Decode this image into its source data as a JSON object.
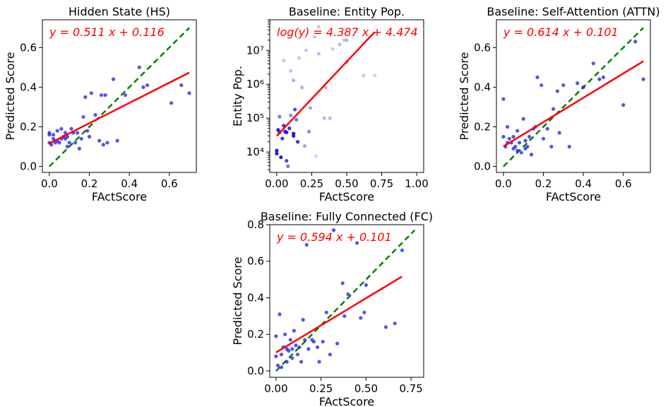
{
  "colors": {
    "points": "#1a1ae6",
    "fit_line": "#ff0000",
    "identity_line": "#008000",
    "equation_text": "#ff0000"
  },
  "chart_data": [
    {
      "id": "hs",
      "type": "scatter",
      "title": "Hidden State (HS)",
      "xlabel": "FActScore",
      "ylabel": "Predicted Score",
      "xlim": [
        -0.035,
        0.735
      ],
      "ylim": [
        -0.03,
        0.74
      ],
      "yscale": "linear",
      "xticks": [
        {
          "v": 0.0,
          "label": "0.0"
        },
        {
          "v": 0.2,
          "label": "0.2"
        },
        {
          "v": 0.4,
          "label": "0.4"
        },
        {
          "v": 0.6,
          "label": "0.6"
        }
      ],
      "yticks": [
        {
          "v": 0.0,
          "label": "0.0"
        },
        {
          "v": 0.2,
          "label": "0.2"
        },
        {
          "v": 0.4,
          "label": "0.4"
        },
        {
          "v": 0.6,
          "label": "0.6"
        }
      ],
      "equation": "y = 0.511 x + 0.116",
      "fit": {
        "slope": 0.511,
        "intercept": 0.116,
        "x_range": [
          0.0,
          0.7
        ]
      },
      "identity": {
        "x_range": [
          0.0,
          0.7
        ]
      },
      "grid": false,
      "points": [
        {
          "x": 0.0,
          "y": 0.17
        },
        {
          "x": 0.0,
          "y": 0.16
        },
        {
          "x": 0.0,
          "y": 0.12
        },
        {
          "x": 0.01,
          "y": 0.11
        },
        {
          "x": 0.02,
          "y": 0.16
        },
        {
          "x": 0.03,
          "y": 0.12
        },
        {
          "x": 0.04,
          "y": 0.13
        },
        {
          "x": 0.05,
          "y": 0.12
        },
        {
          "x": 0.06,
          "y": 0.14
        },
        {
          "x": 0.06,
          "y": 0.19
        },
        {
          "x": 0.07,
          "y": 0.15
        },
        {
          "x": 0.08,
          "y": 0.17
        },
        {
          "x": 0.08,
          "y": 0.14
        },
        {
          "x": 0.09,
          "y": 0.15
        },
        {
          "x": 0.1,
          "y": 0.12
        },
        {
          "x": 0.11,
          "y": 0.19
        },
        {
          "x": 0.12,
          "y": 0.17
        },
        {
          "x": 0.13,
          "y": 0.12
        },
        {
          "x": 0.14,
          "y": 0.17
        },
        {
          "x": 0.15,
          "y": 0.09
        },
        {
          "x": 0.16,
          "y": 0.14
        },
        {
          "x": 0.17,
          "y": 0.25
        },
        {
          "x": 0.18,
          "y": 0.35
        },
        {
          "x": 0.19,
          "y": 0.18
        },
        {
          "x": 0.2,
          "y": 0.15
        },
        {
          "x": 0.21,
          "y": 0.37
        },
        {
          "x": 0.23,
          "y": 0.26
        },
        {
          "x": 0.25,
          "y": 0.13
        },
        {
          "x": 0.26,
          "y": 0.36
        },
        {
          "x": 0.27,
          "y": 0.11
        },
        {
          "x": 0.28,
          "y": 0.36
        },
        {
          "x": 0.29,
          "y": 0.12
        },
        {
          "x": 0.32,
          "y": 0.44
        },
        {
          "x": 0.34,
          "y": 0.13
        },
        {
          "x": 0.38,
          "y": 0.36
        },
        {
          "x": 0.45,
          "y": 0.5
        },
        {
          "x": 0.47,
          "y": 0.4
        },
        {
          "x": 0.49,
          "y": 0.41
        },
        {
          "x": 0.61,
          "y": 0.32
        },
        {
          "x": 0.66,
          "y": 0.41
        },
        {
          "x": 0.7,
          "y": 0.37
        },
        {
          "x": 0.02,
          "y": 0.14
        },
        {
          "x": 0.09,
          "y": 0.1
        },
        {
          "x": 0.04,
          "y": 0.18
        }
      ]
    },
    {
      "id": "entity",
      "type": "scatter",
      "title": "Baseline: Entity Pop.",
      "xlabel": "FActScore",
      "ylabel": "Entity Pop.",
      "xlim": [
        -0.05,
        1.05
      ],
      "ylim": [
        2500,
        80000000
      ],
      "yscale": "log",
      "xticks": [
        {
          "v": 0.0,
          "label": "0.00"
        },
        {
          "v": 0.25,
          "label": "0.25"
        },
        {
          "v": 0.5,
          "label": "0.50"
        },
        {
          "v": 0.75,
          "label": "0.75"
        },
        {
          "v": 1.0,
          "label": "1.00"
        }
      ],
      "yticks": [
        {
          "v": 10000,
          "label": "10⁴"
        },
        {
          "v": 100000,
          "label": "10⁵"
        },
        {
          "v": 1000000,
          "label": "10⁶"
        },
        {
          "v": 10000000,
          "label": "10⁷"
        }
      ],
      "equation": "log(y) = 4.387 x + 4.474",
      "fit": {
        "slope": 4.387,
        "intercept": 4.474,
        "x_range": [
          0.0,
          0.7
        ]
      },
      "grid": false,
      "points": [
        {
          "x": 0.0,
          "y": 9000,
          "a": 1.0
        },
        {
          "x": 0.0,
          "y": 11000,
          "a": 1.0
        },
        {
          "x": 0.01,
          "y": 45000,
          "a": 1.0
        },
        {
          "x": 0.02,
          "y": 38000,
          "a": 0.9
        },
        {
          "x": 0.03,
          "y": 7000,
          "a": 1.0
        },
        {
          "x": 0.04,
          "y": 25000,
          "a": 0.9
        },
        {
          "x": 0.05,
          "y": 60000,
          "a": 0.9
        },
        {
          "x": 0.06,
          "y": 40000,
          "a": 1.0
        },
        {
          "x": 0.07,
          "y": 38000,
          "a": 1.0
        },
        {
          "x": 0.07,
          "y": 5500,
          "a": 0.8
        },
        {
          "x": 0.08,
          "y": 3800,
          "a": 0.6
        },
        {
          "x": 0.1,
          "y": 2500000,
          "a": 0.25
        },
        {
          "x": 0.1,
          "y": 120000,
          "a": 0.5
        },
        {
          "x": 0.12,
          "y": 35000,
          "a": 1.0
        },
        {
          "x": 0.12,
          "y": 30000,
          "a": 1.0
        },
        {
          "x": 0.13,
          "y": 180000,
          "a": 0.8
        },
        {
          "x": 0.14,
          "y": 90000,
          "a": 0.6
        },
        {
          "x": 0.15,
          "y": 20000,
          "a": 0.9
        },
        {
          "x": 0.16,
          "y": 6000000,
          "a": 0.25
        },
        {
          "x": 0.18,
          "y": 800000,
          "a": 0.35
        },
        {
          "x": 0.2,
          "y": 15000,
          "a": 0.4
        },
        {
          "x": 0.21,
          "y": 10000000,
          "a": 0.25
        },
        {
          "x": 0.23,
          "y": 40000,
          "a": 0.5
        },
        {
          "x": 0.24,
          "y": 200000,
          "a": 0.4
        },
        {
          "x": 0.27,
          "y": 25000000,
          "a": 0.25
        },
        {
          "x": 0.28,
          "y": 7500,
          "a": 0.2
        },
        {
          "x": 0.3,
          "y": 50000000,
          "a": 0.25
        },
        {
          "x": 0.3,
          "y": 8000000,
          "a": 0.3
        },
        {
          "x": 0.34,
          "y": 100000,
          "a": 0.3
        },
        {
          "x": 0.35,
          "y": 800000,
          "a": 0.3
        },
        {
          "x": 0.38,
          "y": 100000,
          "a": 0.3
        },
        {
          "x": 0.4,
          "y": 11000000,
          "a": 0.25
        },
        {
          "x": 0.45,
          "y": 15000000,
          "a": 0.3
        },
        {
          "x": 0.48,
          "y": 20000000,
          "a": 0.25
        },
        {
          "x": 0.5,
          "y": 20000000,
          "a": 0.3
        },
        {
          "x": 0.5,
          "y": 4500000,
          "a": 0.3
        },
        {
          "x": 0.62,
          "y": 1800000,
          "a": 0.25
        },
        {
          "x": 0.7,
          "y": 1800000,
          "a": 0.2
        },
        {
          "x": 0.05,
          "y": 5000000,
          "a": 0.25
        },
        {
          "x": 0.12,
          "y": 1300000,
          "a": 0.35
        },
        {
          "x": 0.02,
          "y": 110000,
          "a": 0.6
        },
        {
          "x": 0.09,
          "y": 50000,
          "a": 0.9
        }
      ]
    },
    {
      "id": "attn",
      "type": "scatter",
      "title": "Baseline: Self-Attention (ATTN)",
      "xlabel": "FActScore",
      "ylabel": "Predicted Score",
      "xlim": [
        -0.035,
        0.735
      ],
      "ylim": [
        -0.03,
        0.74
      ],
      "yscale": "linear",
      "xticks": [
        {
          "v": 0.0,
          "label": "0.0"
        },
        {
          "v": 0.2,
          "label": "0.2"
        },
        {
          "v": 0.4,
          "label": "0.4"
        },
        {
          "v": 0.6,
          "label": "0.6"
        }
      ],
      "yticks": [
        {
          "v": 0.0,
          "label": "0.0"
        },
        {
          "v": 0.2,
          "label": "0.2"
        },
        {
          "v": 0.4,
          "label": "0.4"
        },
        {
          "v": 0.6,
          "label": "0.6"
        }
      ],
      "equation": "y = 0.614 x + 0.101",
      "fit": {
        "slope": 0.614,
        "intercept": 0.101,
        "x_range": [
          0.0,
          0.7
        ]
      },
      "identity": {
        "x_range": [
          0.0,
          0.7
        ]
      },
      "grid": false,
      "points": [
        {
          "x": 0.0,
          "y": 0.15
        },
        {
          "x": 0.0,
          "y": 0.34
        },
        {
          "x": 0.01,
          "y": 0.1
        },
        {
          "x": 0.02,
          "y": 0.2
        },
        {
          "x": 0.03,
          "y": 0.14
        },
        {
          "x": 0.04,
          "y": 0.12
        },
        {
          "x": 0.05,
          "y": 0.15
        },
        {
          "x": 0.06,
          "y": 0.1
        },
        {
          "x": 0.07,
          "y": 0.08
        },
        {
          "x": 0.08,
          "y": 0.12
        },
        {
          "x": 0.09,
          "y": 0.07
        },
        {
          "x": 0.1,
          "y": 0.24
        },
        {
          "x": 0.11,
          "y": 0.13
        },
        {
          "x": 0.12,
          "y": 0.1
        },
        {
          "x": 0.14,
          "y": 0.06
        },
        {
          "x": 0.15,
          "y": 0.19
        },
        {
          "x": 0.16,
          "y": 0.2
        },
        {
          "x": 0.17,
          "y": 0.45
        },
        {
          "x": 0.19,
          "y": 0.41
        },
        {
          "x": 0.2,
          "y": 0.14
        },
        {
          "x": 0.22,
          "y": 0.19
        },
        {
          "x": 0.24,
          "y": 0.1
        },
        {
          "x": 0.25,
          "y": 0.29
        },
        {
          "x": 0.27,
          "y": 0.38
        },
        {
          "x": 0.28,
          "y": 0.17
        },
        {
          "x": 0.3,
          "y": 0.41
        },
        {
          "x": 0.33,
          "y": 0.1
        },
        {
          "x": 0.37,
          "y": 0.42
        },
        {
          "x": 0.4,
          "y": 0.4
        },
        {
          "x": 0.45,
          "y": 0.52
        },
        {
          "x": 0.48,
          "y": 0.44
        },
        {
          "x": 0.5,
          "y": 0.45
        },
        {
          "x": 0.6,
          "y": 0.31
        },
        {
          "x": 0.66,
          "y": 0.63
        },
        {
          "x": 0.7,
          "y": 0.44
        },
        {
          "x": 0.05,
          "y": 0.09
        },
        {
          "x": 0.13,
          "y": 0.15
        },
        {
          "x": 0.07,
          "y": 0.18
        },
        {
          "x": 0.02,
          "y": 0.12
        },
        {
          "x": 0.11,
          "y": 0.09
        }
      ]
    },
    {
      "id": "fc",
      "type": "scatter",
      "title": "Baseline: Fully Connected (FC)",
      "xlabel": "FActScore",
      "ylabel": "Predicted Score",
      "xlim": [
        -0.035,
        0.82
      ],
      "ylim": [
        -0.035,
        0.8
      ],
      "yscale": "linear",
      "xticks": [
        {
          "v": 0.0,
          "label": "0.00"
        },
        {
          "v": 0.25,
          "label": "0.25"
        },
        {
          "v": 0.5,
          "label": "0.50"
        },
        {
          "v": 0.75,
          "label": "0.75"
        }
      ],
      "yticks": [
        {
          "v": 0.0,
          "label": "0.0"
        },
        {
          "v": 0.2,
          "label": "0.2"
        },
        {
          "v": 0.4,
          "label": "0.4"
        },
        {
          "v": 0.6,
          "label": "0.6"
        },
        {
          "v": 0.8,
          "label": "0.8"
        }
      ],
      "equation": "y = 0.594 x + 0.101",
      "fit": {
        "slope": 0.594,
        "intercept": 0.101,
        "x_range": [
          0.0,
          0.7
        ]
      },
      "identity": {
        "x_range": [
          0.0,
          0.77
        ]
      },
      "grid": false,
      "points": [
        {
          "x": 0.0,
          "y": 0.19
        },
        {
          "x": 0.0,
          "y": 0.08
        },
        {
          "x": 0.01,
          "y": 0.03
        },
        {
          "x": 0.02,
          "y": 0.31
        },
        {
          "x": 0.03,
          "y": 0.09
        },
        {
          "x": 0.04,
          "y": 0.13
        },
        {
          "x": 0.05,
          "y": 0.2
        },
        {
          "x": 0.06,
          "y": 0.05
        },
        {
          "x": 0.07,
          "y": 0.11
        },
        {
          "x": 0.08,
          "y": 0.17
        },
        {
          "x": 0.09,
          "y": 0.12
        },
        {
          "x": 0.1,
          "y": 0.22
        },
        {
          "x": 0.11,
          "y": 0.14
        },
        {
          "x": 0.12,
          "y": 0.09
        },
        {
          "x": 0.13,
          "y": 0.13
        },
        {
          "x": 0.14,
          "y": 0.05
        },
        {
          "x": 0.15,
          "y": 0.28
        },
        {
          "x": 0.16,
          "y": 0.17
        },
        {
          "x": 0.17,
          "y": 0.69
        },
        {
          "x": 0.18,
          "y": 0.12
        },
        {
          "x": 0.2,
          "y": 0.17
        },
        {
          "x": 0.21,
          "y": 0.16
        },
        {
          "x": 0.23,
          "y": 0.13
        },
        {
          "x": 0.24,
          "y": 0.05
        },
        {
          "x": 0.26,
          "y": 0.16
        },
        {
          "x": 0.28,
          "y": 0.32
        },
        {
          "x": 0.3,
          "y": 0.09
        },
        {
          "x": 0.32,
          "y": 0.77
        },
        {
          "x": 0.34,
          "y": 0.15
        },
        {
          "x": 0.37,
          "y": 0.48
        },
        {
          "x": 0.38,
          "y": 0.3
        },
        {
          "x": 0.4,
          "y": 0.42
        },
        {
          "x": 0.45,
          "y": 0.7
        },
        {
          "x": 0.47,
          "y": 0.29
        },
        {
          "x": 0.49,
          "y": 0.32
        },
        {
          "x": 0.5,
          "y": 0.47
        },
        {
          "x": 0.61,
          "y": 0.24
        },
        {
          "x": 0.66,
          "y": 0.26
        },
        {
          "x": 0.7,
          "y": 0.66
        },
        {
          "x": 0.03,
          "y": 0.02
        },
        {
          "x": 0.09,
          "y": 0.07
        },
        {
          "x": 0.06,
          "y": 0.12
        }
      ]
    }
  ]
}
